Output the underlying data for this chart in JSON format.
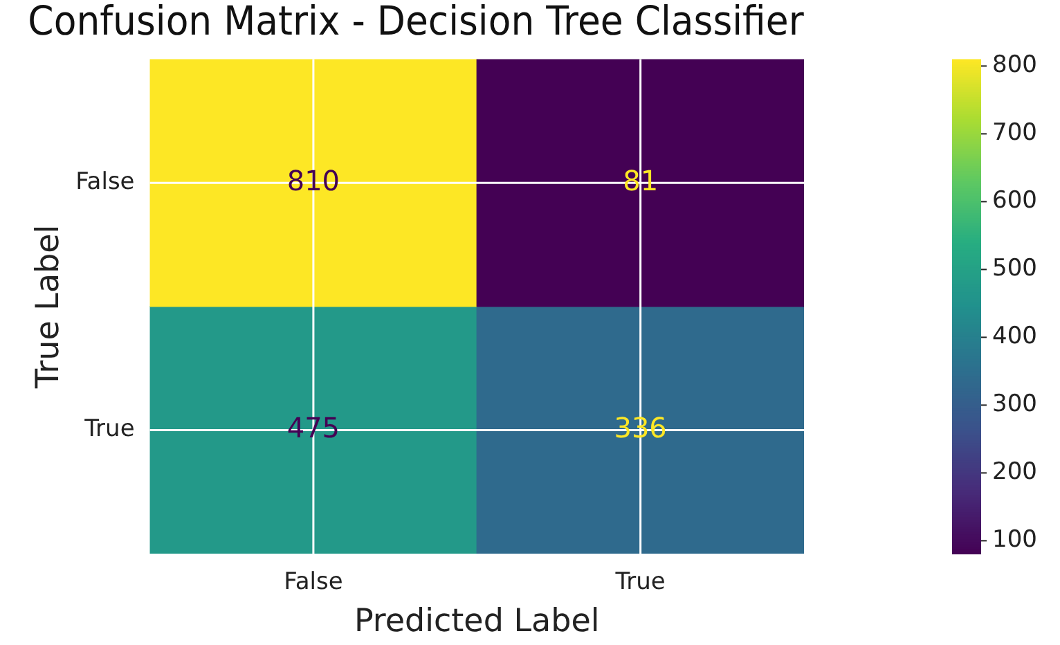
{
  "chart_data": {
    "type": "heatmap",
    "title": "Confusion Matrix - Decision Tree Classifier",
    "xlabel": "Predicted Label",
    "ylabel": "True Label",
    "categories": [
      "False",
      "True"
    ],
    "y_categories": [
      "False",
      "True"
    ],
    "cells": [
      [
        810,
        81
      ],
      [
        475,
        336
      ]
    ],
    "clim": [
      81,
      810
    ],
    "cticks": [
      100,
      200,
      300,
      400,
      500,
      600,
      700,
      800
    ],
    "data_labels": true,
    "grid": true
  }
}
